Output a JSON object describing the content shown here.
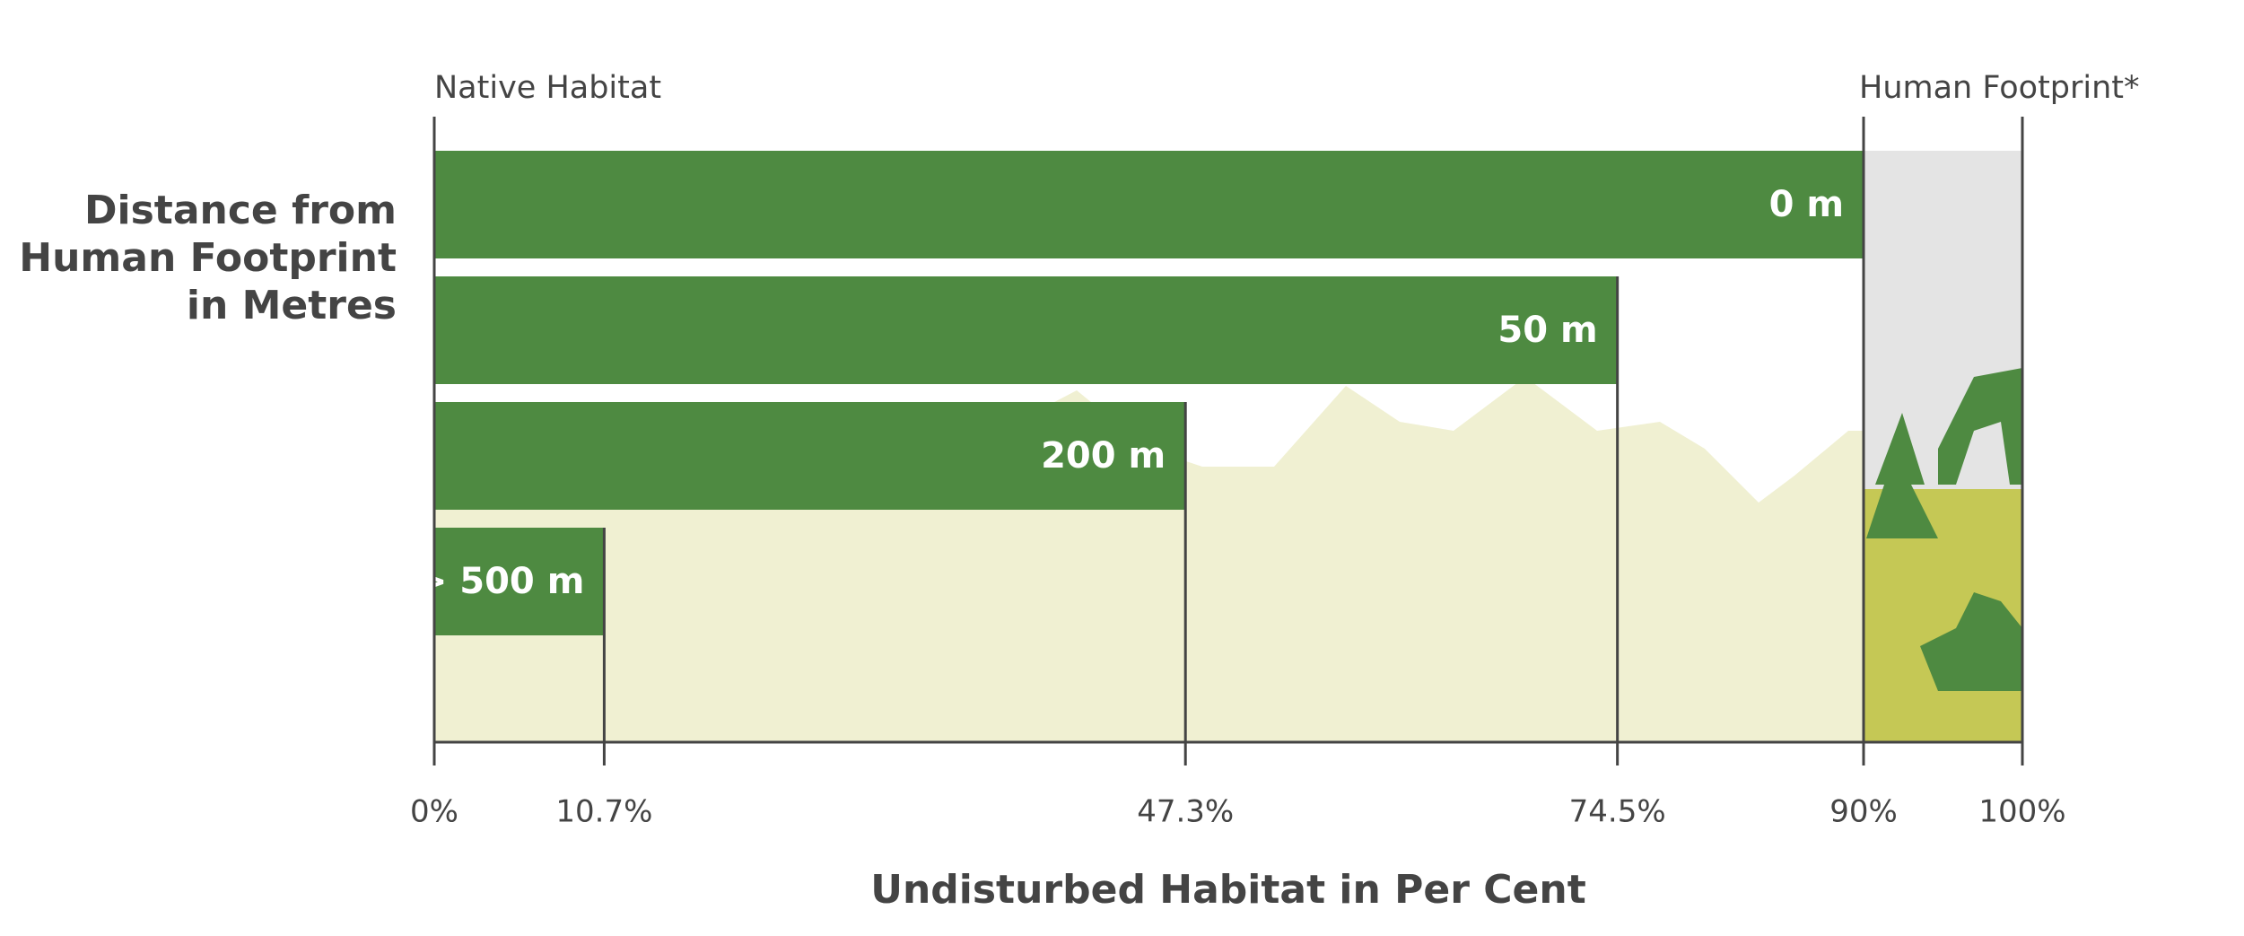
{
  "chart_data": {
    "type": "bar",
    "orientation": "horizontal",
    "left_label": "Native Habitat",
    "right_label": "Human Footprint*",
    "y_title": [
      "Distance from",
      "Human Footprint",
      "in Metres"
    ],
    "x_title": "Undisturbed Habitat in Per Cent",
    "categories": [
      "0 m",
      "50 m",
      "200 m",
      "> 500 m"
    ],
    "values": [
      90,
      74.5,
      47.3,
      10.7
    ],
    "color": "#4e8a41",
    "xlim": [
      0,
      100
    ],
    "xticks": [
      {
        "value": 0,
        "label": "0%"
      },
      {
        "value": 10.7,
        "label": "10.7%"
      },
      {
        "value": 47.3,
        "label": "47.3%"
      },
      {
        "value": 74.5,
        "label": "74.5%"
      },
      {
        "value": 90,
        "label": "90%"
      },
      {
        "value": 100,
        "label": "100%"
      }
    ]
  }
}
